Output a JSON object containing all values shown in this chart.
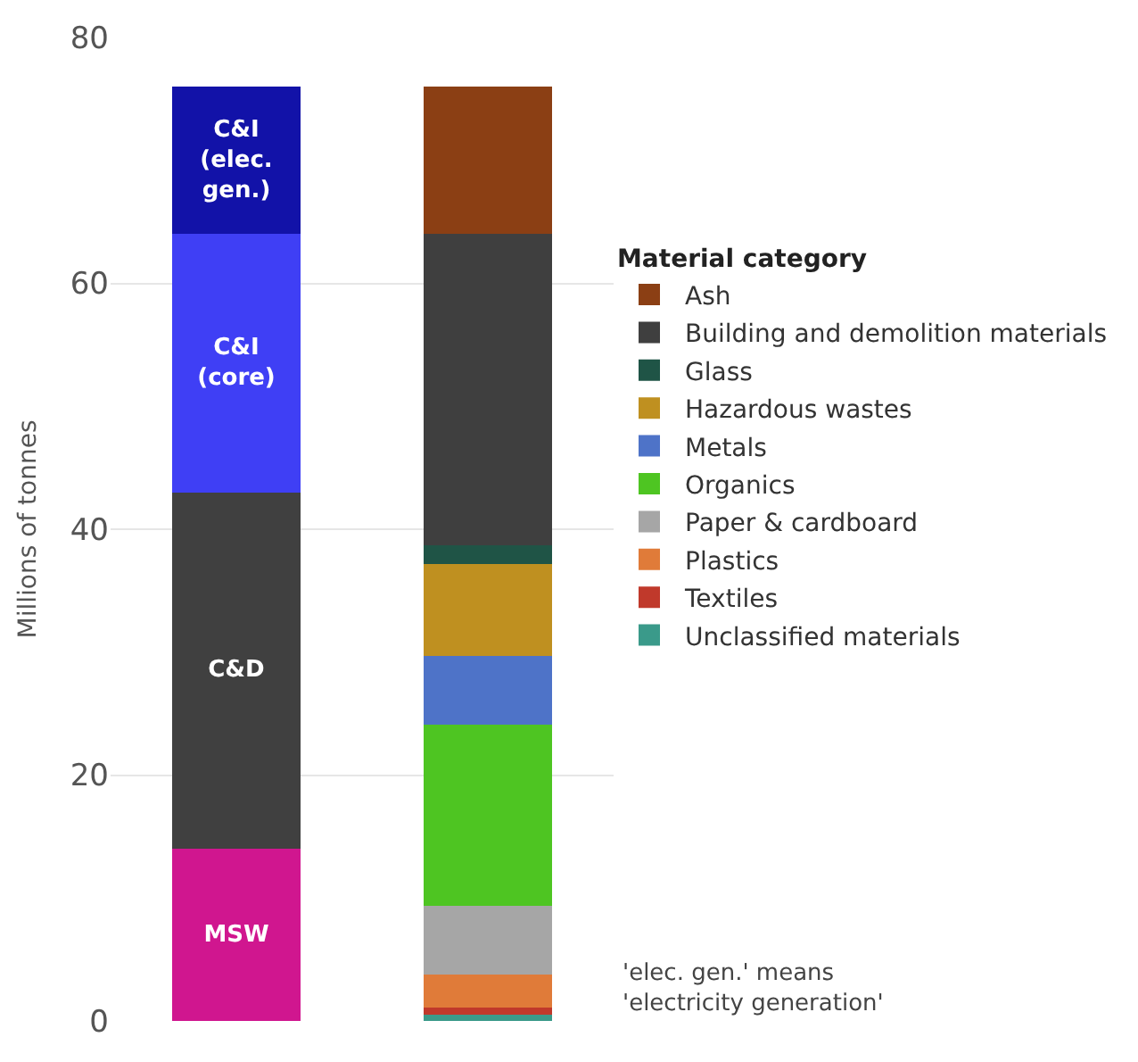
{
  "chart_data": {
    "type": "bar",
    "stacked": true,
    "ylabel": "Millions of tonnes",
    "legend_title": "Material category",
    "categories": [
      null,
      null
    ],
    "series": [
      {
        "name": "MSW",
        "color": "#d0168f",
        "values": [
          14,
          null
        ]
      },
      {
        "name": "C&D",
        "color": "#404040",
        "values": [
          29,
          null
        ]
      },
      {
        "name": "C&I (core)",
        "color": "#3f3ff5",
        "values": [
          21,
          null
        ]
      },
      {
        "name": "C&I (elec. gen.)",
        "color": "#1212a8",
        "values": [
          12,
          null
        ]
      },
      {
        "name": "Unclassified materials",
        "color": "#3a9a8a",
        "values": [
          null,
          0.5
        ]
      },
      {
        "name": "Textiles",
        "color": "#c0392b",
        "values": [
          null,
          0.6
        ]
      },
      {
        "name": "Plastics",
        "color": "#e07b39",
        "values": [
          null,
          2.7
        ]
      },
      {
        "name": "Paper & cardboard",
        "color": "#a6a6a6",
        "values": [
          null,
          5.6
        ]
      },
      {
        "name": "Organics",
        "color": "#4ec522",
        "values": [
          null,
          14.7
        ]
      },
      {
        "name": "Metals",
        "color": "#4e73c8",
        "values": [
          null,
          5.6
        ]
      },
      {
        "name": "Hazardous wastes",
        "color": "#bf9020",
        "values": [
          null,
          7.5
        ]
      },
      {
        "name": "Glass",
        "color": "#1f5446",
        "values": [
          null,
          1.5
        ]
      },
      {
        "name": "Building and demolition materials",
        "color": "#3f3f3f",
        "values": [
          null,
          25.3
        ]
      },
      {
        "name": "Ash",
        "color": "#8b3f14",
        "values": [
          null,
          12
        ]
      }
    ],
    "ylim": [
      0,
      80
    ],
    "yticks": [
      0,
      20,
      40,
      60,
      80
    ],
    "grid": "y",
    "legend": "right",
    "annotations": [
      "'elec. gen.' means\n'electricity generation'"
    ]
  }
}
